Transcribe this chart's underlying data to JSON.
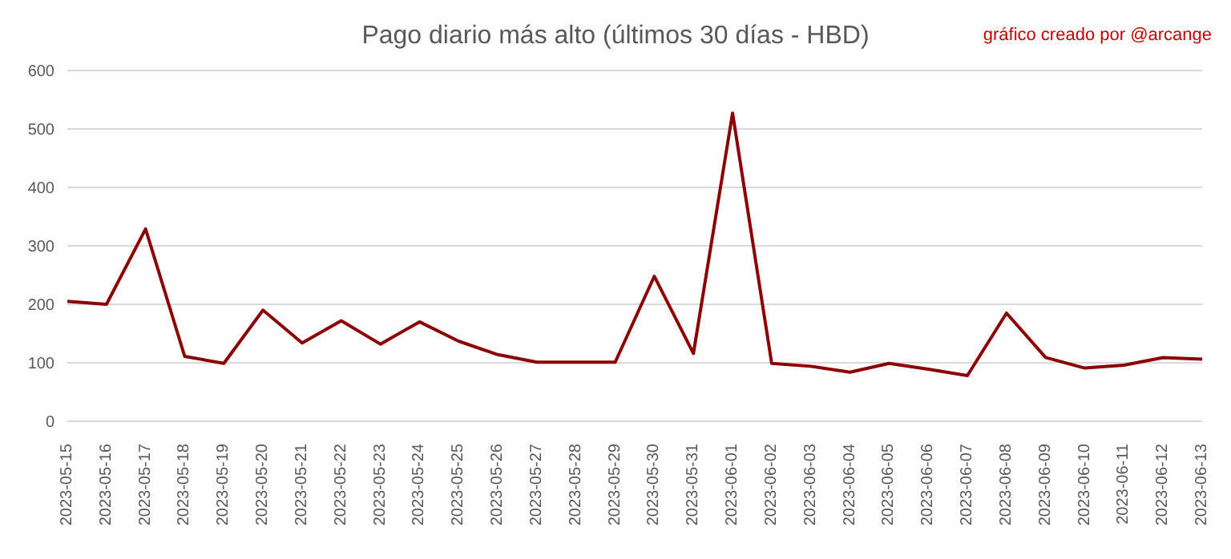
{
  "chart_data": {
    "type": "line",
    "title": "Pago diario más alto (últimos 30 días - HBD)",
    "annotations": [
      "gráfico creado por @arcange"
    ],
    "categories": [
      "2023-05-15",
      "2023-05-16",
      "2023-05-17",
      "2023-05-18",
      "2023-05-19",
      "2023-05-20",
      "2023-05-21",
      "2023-05-22",
      "2023-05-23",
      "2023-05-24",
      "2023-05-25",
      "2023-05-26",
      "2023-05-27",
      "2023-05-28",
      "2023-05-29",
      "2023-05-30",
      "2023-05-31",
      "2023-06-01",
      "2023-06-02",
      "2023-06-03",
      "2023-06-04",
      "2023-06-05",
      "2023-06-06",
      "2023-06-07",
      "2023-06-08",
      "2023-06-09",
      "2023-06-10",
      "2023-06-11",
      "2023-06-12",
      "2023-06-13"
    ],
    "series": [
      {
        "color": "#8b0000",
        "values": [
          205,
          200,
          329,
          111,
          99,
          190,
          134,
          172,
          132,
          170,
          137,
          114,
          101,
          101,
          101,
          248,
          116,
          527,
          99,
          94,
          84,
          99,
          89,
          78,
          185,
          109,
          91,
          96,
          109,
          106
        ]
      }
    ],
    "ylim": [
      0,
      600
    ],
    "yticks": [
      0,
      100,
      200,
      300,
      400,
      500,
      600
    ],
    "grid": "y",
    "marker": "none",
    "line_style": "solid"
  }
}
